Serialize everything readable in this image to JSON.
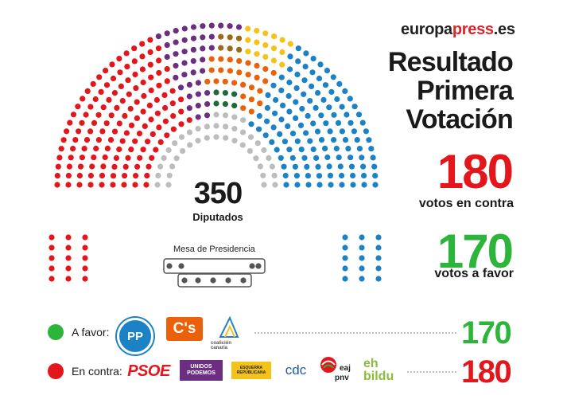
{
  "brand": {
    "part1": "europa",
    "part2": "press",
    "part3": ".es"
  },
  "title": {
    "line1": "Resultado",
    "line2": "Primera",
    "line3": "Votación"
  },
  "against": {
    "count": "180",
    "label": "votos en contra"
  },
  "favor": {
    "count": "170",
    "label": "votos a favor"
  },
  "chamber": {
    "total": "350",
    "total_label": "Diputados",
    "mesa_label": "Mesa de Presidencia"
  },
  "legend": {
    "favor_label": "A favor:",
    "favor_total": "170",
    "contra_label": "En contra:",
    "contra_total": "180"
  },
  "logos": {
    "pp": "PP",
    "cs": "C's",
    "cc": "coalición canaria",
    "psoe": "PSOE",
    "up_l1": "UNIDOS",
    "up_l2": "PODEMOS",
    "erc_l1": "ESQUERRA",
    "erc_l2": "REPUBLICANA",
    "cdc": "cdc",
    "pnv_l1": "eaj",
    "pnv_l2": "pnv",
    "bildu_l1": "eh",
    "bildu_l2": "bildu"
  },
  "colors": {
    "red": "#e3161b",
    "green": "#2cb53a",
    "pp": "#1b82c5",
    "cs": "#eb6109",
    "podemos": "#6b2e80",
    "erc": "#f5c21a",
    "pnv_brown": "#9b6a17",
    "cc": "#1d6b3a",
    "grey": "#bdbdbd"
  }
}
